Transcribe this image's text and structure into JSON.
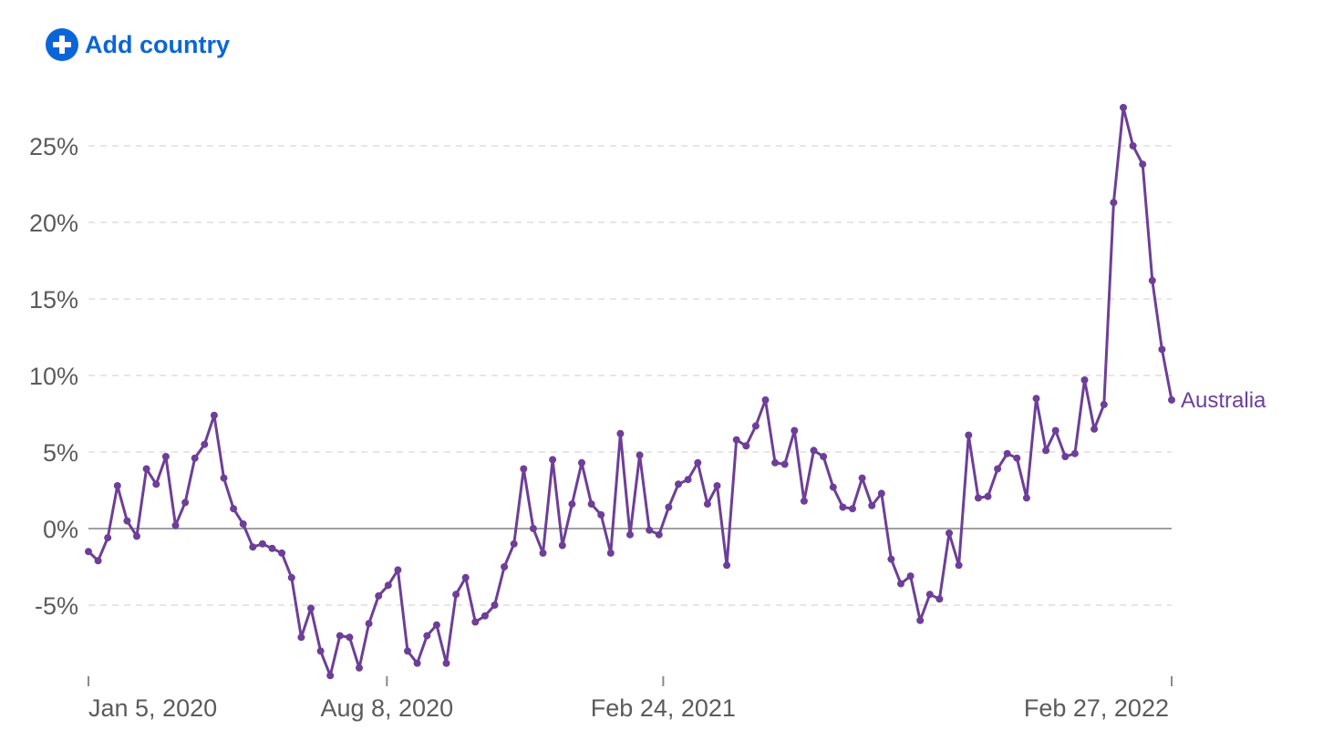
{
  "add_country": {
    "label": "Add country",
    "icon": "plus-circle-icon"
  },
  "colors": {
    "accent": "#0a66d8",
    "series": "#6d3f98",
    "grid": "#dddddd",
    "zero": "#a0a0a0",
    "text": "#5b5b5b"
  },
  "chart_data": {
    "type": "line",
    "title": "",
    "xlabel": "",
    "ylabel": "",
    "y_unit": "%",
    "ylim": [
      -9.7,
      27.8
    ],
    "yticks": [
      -5,
      0,
      5,
      10,
      15,
      20,
      25
    ],
    "ytick_labels": [
      "-5%",
      "0%",
      "5%",
      "10%",
      "15%",
      "20%",
      "25%"
    ],
    "x_start": "2020-01-05",
    "x_end": "2022-02-27",
    "xticks": [
      "2020-01-05",
      "2020-08-08",
      "2021-02-24",
      "2022-02-27"
    ],
    "xtick_labels": [
      "Jan 5, 2020",
      "Aug 8, 2020",
      "Feb 24, 2021",
      "Feb 27, 2022"
    ],
    "grid": true,
    "legend": "inline-end",
    "series": [
      {
        "name": "Australia",
        "color": "#6d3f98",
        "values": [
          -1.5,
          -2.1,
          -0.6,
          2.8,
          0.5,
          -0.5,
          3.9,
          2.9,
          4.7,
          0.2,
          1.7,
          4.6,
          5.5,
          7.4,
          3.3,
          1.3,
          0.3,
          -1.2,
          -1.0,
          -1.3,
          -1.6,
          -3.2,
          -7.1,
          -5.2,
          -8.0,
          -9.6,
          -7.0,
          -7.1,
          -9.1,
          -6.2,
          -4.4,
          -3.7,
          -2.7,
          -8.0,
          -8.8,
          -7.0,
          -6.3,
          -8.8,
          -4.3,
          -3.2,
          -6.1,
          -5.7,
          -5.0,
          -2.5,
          -1.0,
          3.9,
          0.0,
          -1.6,
          4.5,
          -1.1,
          1.6,
          4.3,
          1.6,
          0.9,
          -1.6,
          6.2,
          -0.4,
          4.8,
          -0.1,
          -0.4,
          1.4,
          2.9,
          3.2,
          4.3,
          1.6,
          2.8,
          -2.4,
          5.8,
          5.4,
          6.7,
          8.4,
          4.3,
          4.2,
          6.4,
          1.8,
          5.1,
          4.7,
          2.7,
          1.4,
          1.3,
          3.3,
          1.5,
          2.3,
          -2.0,
          -3.6,
          -3.1,
          -6.0,
          -4.3,
          -4.6,
          -0.3,
          -2.4,
          6.1,
          2.0,
          2.1,
          3.9,
          4.9,
          4.6,
          2.0,
          8.5,
          5.1,
          6.4,
          4.7,
          4.9,
          9.7,
          6.5,
          8.1,
          21.3,
          27.5,
          25.0,
          23.8,
          16.2,
          11.7,
          8.4
        ]
      }
    ]
  }
}
